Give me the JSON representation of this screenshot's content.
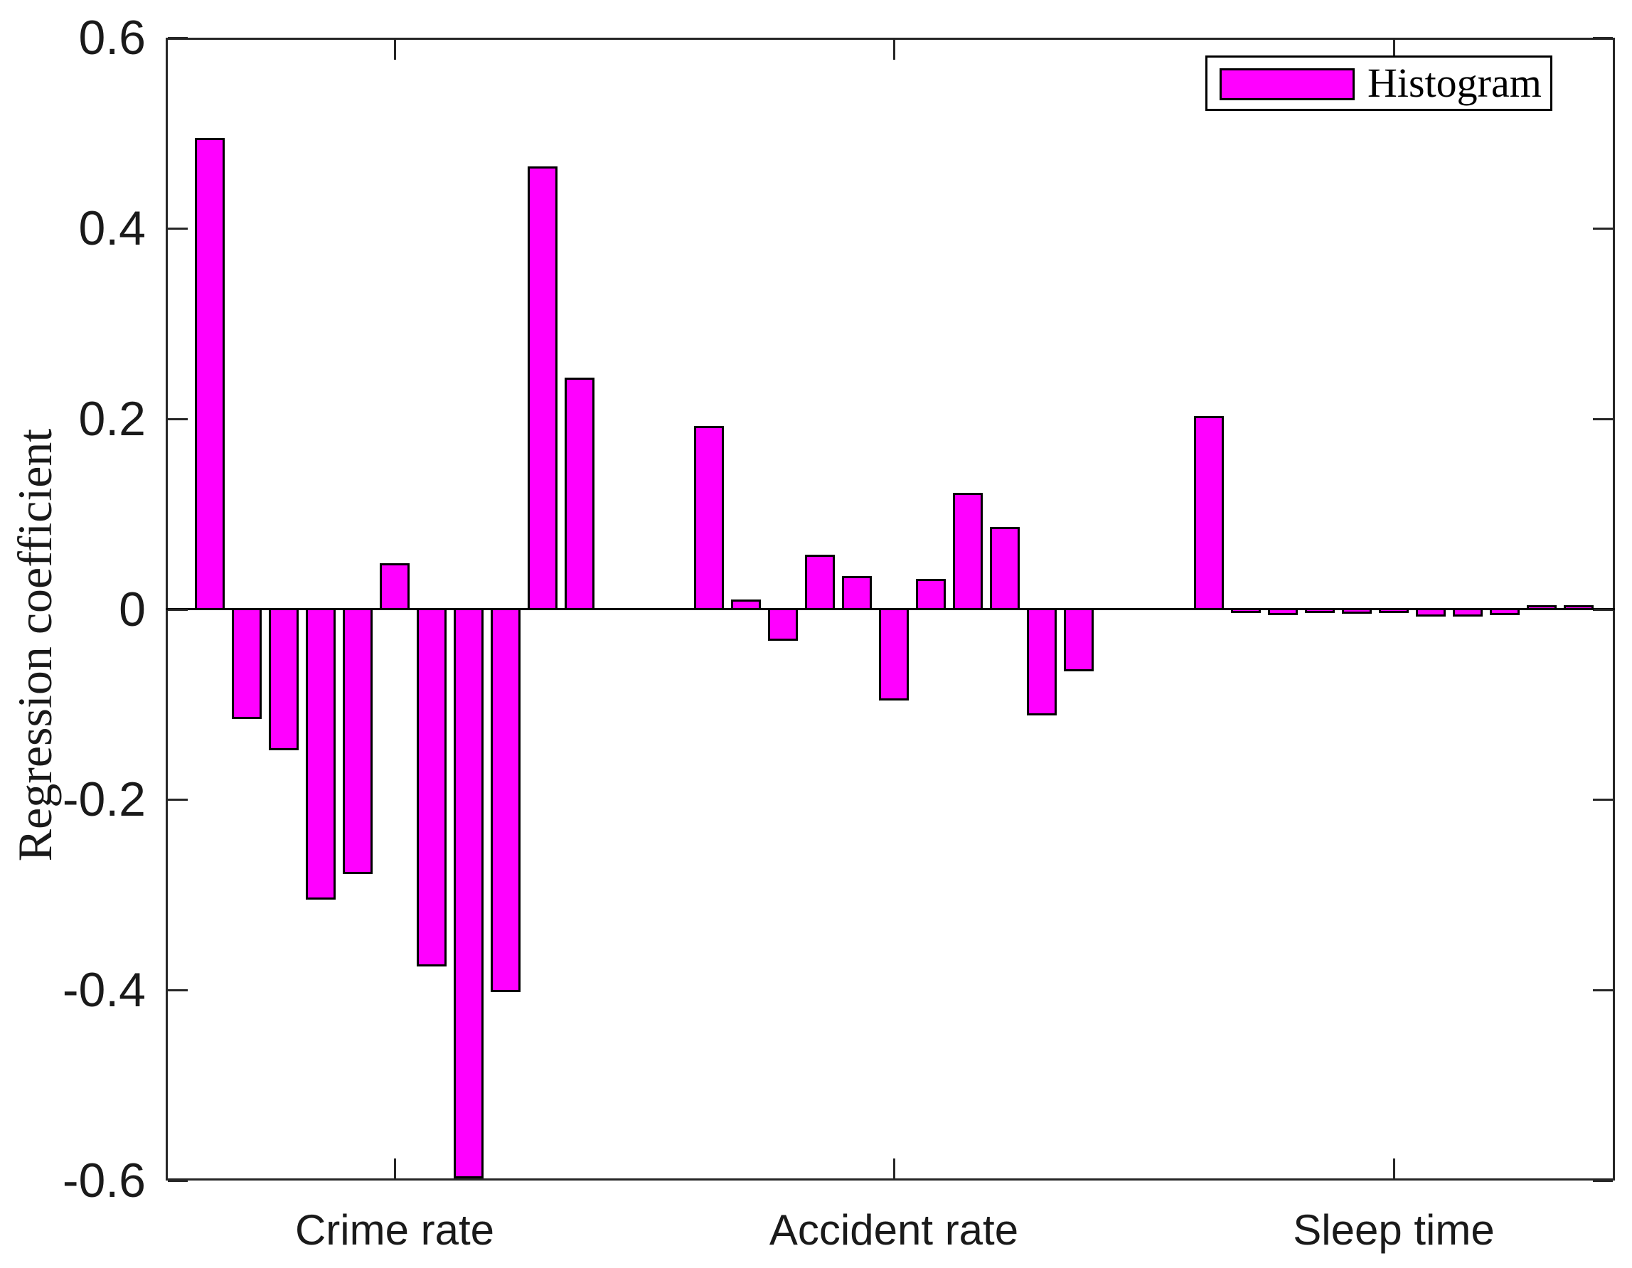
{
  "colors": {
    "bar_fill": "#FF00FF",
    "bar_edge": "#000000",
    "axis": "#262626",
    "text": "#1a1a1a",
    "background": "#ffffff"
  },
  "chart_data": {
    "type": "bar",
    "title": "",
    "xlabel": "",
    "ylabel": "Regression coefficient",
    "ylim": [
      -0.6,
      0.6
    ],
    "grid": false,
    "y_ticks": [
      0.6,
      0.4,
      0.2,
      0,
      -0.2,
      -0.4,
      -0.6
    ],
    "y_tick_labels": [
      "0.6",
      "0.4",
      "0.2",
      "0",
      "-0.2",
      "-0.4",
      "-0.6"
    ],
    "categories": [
      "Crime rate",
      "Accident rate",
      "Sleep time"
    ],
    "legend": {
      "label": "Histogram",
      "position": "top-right"
    },
    "bar_color": "#FF00FF",
    "bar_edge_color": "#000000",
    "groups": [
      {
        "category": "Crime rate",
        "values": [
          0.495,
          -0.115,
          -0.148,
          -0.305,
          -0.278,
          0.048,
          -0.375,
          -0.598,
          -0.402,
          0.465,
          0.243
        ]
      },
      {
        "category": "Accident rate",
        "values": [
          0.192,
          0.01,
          -0.033,
          0.057,
          0.035,
          -0.096,
          0.032,
          0.122,
          0.086,
          -0.112,
          -0.065
        ]
      },
      {
        "category": "Sleep time",
        "values": [
          0.203,
          -0.004,
          -0.006,
          -0.004,
          -0.005,
          -0.003,
          -0.008,
          -0.008,
          -0.006,
          0.004,
          0.002
        ]
      }
    ]
  }
}
